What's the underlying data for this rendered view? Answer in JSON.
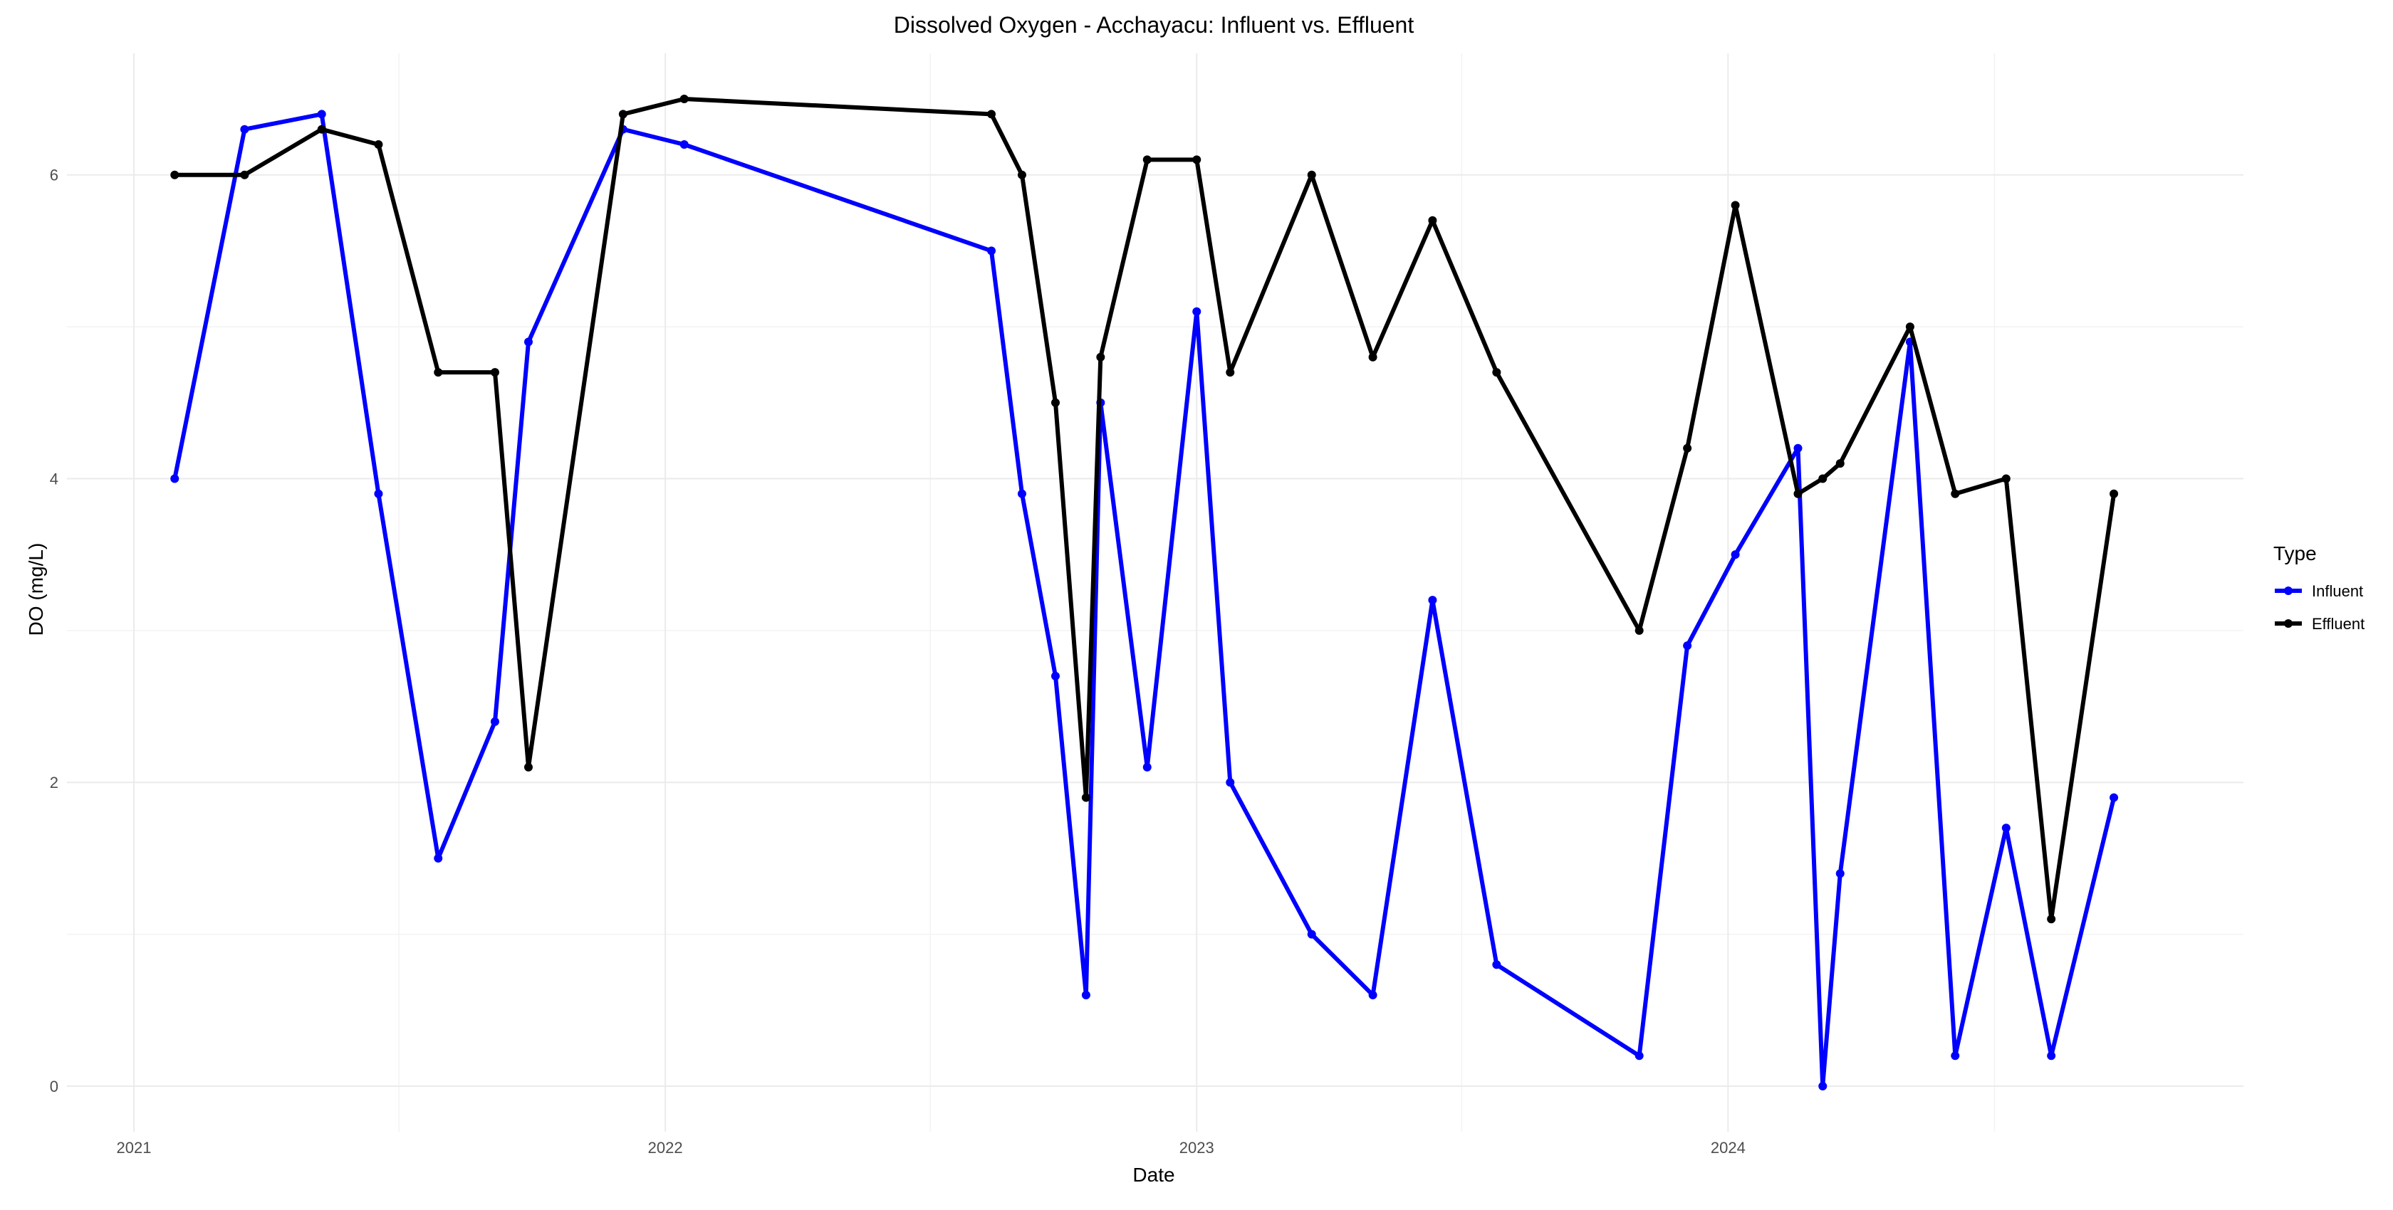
{
  "chart_data": {
    "type": "line",
    "title": "Dissolved Oxygen - Acchayacu: Influent vs. Effluent",
    "xlabel": "Date",
    "ylabel": "DO (mg/L)",
    "xlim": [
      "2020-11-16",
      "2024-12-20"
    ],
    "ylim": [
      -0.3,
      6.8
    ],
    "x_ticks": [
      {
        "date": "2021-01-01",
        "label": "2021"
      },
      {
        "date": "2022-01-01",
        "label": "2022"
      },
      {
        "date": "2023-01-01",
        "label": "2023"
      },
      {
        "date": "2024-01-01",
        "label": "2024"
      }
    ],
    "x_minor_ticks": [
      "2021-07-02",
      "2022-07-02",
      "2023-07-02",
      "2024-07-02"
    ],
    "y_ticks": [
      0,
      2,
      4,
      6
    ],
    "y_minor_ticks": [
      1,
      3,
      5
    ],
    "grid": true,
    "legend": {
      "title": "Type",
      "position": "right"
    },
    "series": [
      {
        "name": "Influent",
        "color": "#0000ff",
        "points": [
          {
            "x": "2021-01-29",
            "y": 4.0
          },
          {
            "x": "2021-03-18",
            "y": 6.3
          },
          {
            "x": "2021-05-10",
            "y": 6.4
          },
          {
            "x": "2021-06-18",
            "y": 3.9
          },
          {
            "x": "2021-07-29",
            "y": 1.5
          },
          {
            "x": "2021-09-06",
            "y": 2.4
          },
          {
            "x": "2021-09-29",
            "y": 4.9
          },
          {
            "x": "2021-12-03",
            "y": 6.3
          },
          {
            "x": "2022-01-14",
            "y": 6.2
          },
          {
            "x": "2022-08-13",
            "y": 5.5
          },
          {
            "x": "2022-09-03",
            "y": 3.9
          },
          {
            "x": "2022-09-26",
            "y": 2.7
          },
          {
            "x": "2022-10-17",
            "y": 0.6
          },
          {
            "x": "2022-10-27",
            "y": 4.5
          },
          {
            "x": "2022-11-28",
            "y": 2.1
          },
          {
            "x": "2023-01-01",
            "y": 5.1
          },
          {
            "x": "2023-01-24",
            "y": 2.0
          },
          {
            "x": "2023-03-21",
            "y": 1.0
          },
          {
            "x": "2023-05-02",
            "y": 0.6
          },
          {
            "x": "2023-06-12",
            "y": 3.2
          },
          {
            "x": "2023-07-26",
            "y": 0.8
          },
          {
            "x": "2023-11-01",
            "y": 0.2
          },
          {
            "x": "2023-12-04",
            "y": 2.9
          },
          {
            "x": "2024-01-06",
            "y": 3.5
          },
          {
            "x": "2024-02-18",
            "y": 4.2
          },
          {
            "x": "2024-03-06",
            "y": 0.0
          },
          {
            "x": "2024-03-18",
            "y": 1.4
          },
          {
            "x": "2024-05-05",
            "y": 4.9
          },
          {
            "x": "2024-06-05",
            "y": 0.2
          },
          {
            "x": "2024-07-10",
            "y": 1.7
          },
          {
            "x": "2024-08-10",
            "y": 0.2
          },
          {
            "x": "2024-09-22",
            "y": 1.9
          }
        ]
      },
      {
        "name": "Effluent",
        "color": "#000000",
        "points": [
          {
            "x": "2021-01-29",
            "y": 6.0
          },
          {
            "x": "2021-03-18",
            "y": 6.0
          },
          {
            "x": "2021-05-10",
            "y": 6.3
          },
          {
            "x": "2021-06-18",
            "y": 6.2
          },
          {
            "x": "2021-07-29",
            "y": 4.7
          },
          {
            "x": "2021-09-06",
            "y": 4.7
          },
          {
            "x": "2021-09-29",
            "y": 2.1
          },
          {
            "x": "2021-12-03",
            "y": 6.4
          },
          {
            "x": "2022-01-14",
            "y": 6.5
          },
          {
            "x": "2022-08-13",
            "y": 6.4
          },
          {
            "x": "2022-09-03",
            "y": 6.0
          },
          {
            "x": "2022-09-26",
            "y": 4.5
          },
          {
            "x": "2022-10-17",
            "y": 1.9
          },
          {
            "x": "2022-10-27",
            "y": 4.8
          },
          {
            "x": "2022-11-28",
            "y": 6.1
          },
          {
            "x": "2023-01-01",
            "y": 6.1
          },
          {
            "x": "2023-01-24",
            "y": 4.7
          },
          {
            "x": "2023-03-21",
            "y": 6.0
          },
          {
            "x": "2023-05-02",
            "y": 4.8
          },
          {
            "x": "2023-06-12",
            "y": 5.7
          },
          {
            "x": "2023-07-26",
            "y": 4.7
          },
          {
            "x": "2023-11-01",
            "y": 3.0
          },
          {
            "x": "2023-12-04",
            "y": 4.2
          },
          {
            "x": "2024-01-06",
            "y": 5.8
          },
          {
            "x": "2024-02-18",
            "y": 3.9
          },
          {
            "x": "2024-03-06",
            "y": 4.0
          },
          {
            "x": "2024-03-18",
            "y": 4.1
          },
          {
            "x": "2024-05-05",
            "y": 5.0
          },
          {
            "x": "2024-06-05",
            "y": 3.9
          },
          {
            "x": "2024-07-10",
            "y": 4.0
          },
          {
            "x": "2024-08-10",
            "y": 1.1
          },
          {
            "x": "2024-09-22",
            "y": 3.9
          }
        ]
      }
    ]
  }
}
